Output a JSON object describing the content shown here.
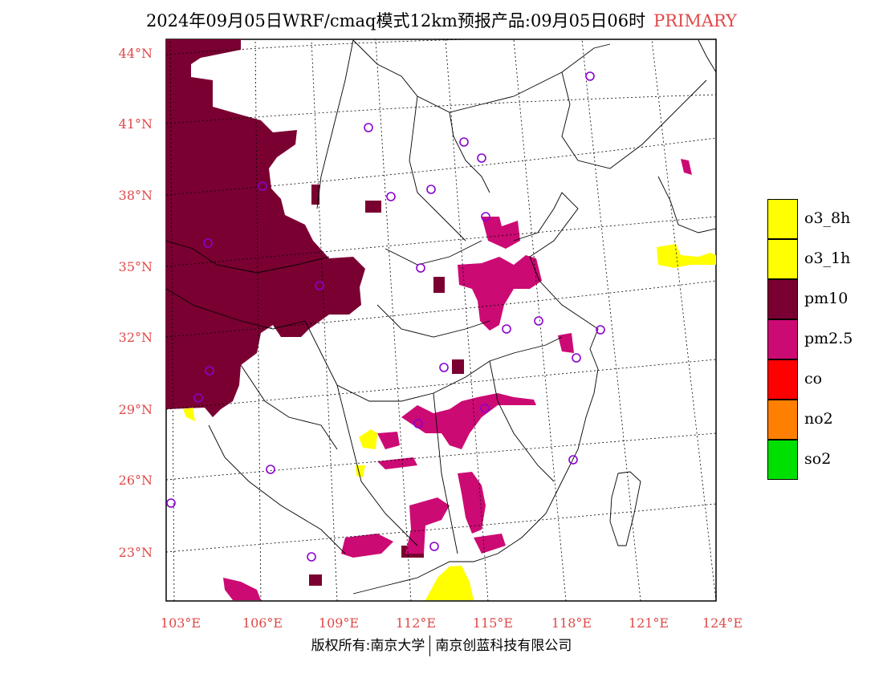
{
  "title": {
    "main": "2024年09月05日WRF/cmaq模式12km预报产品:09月05日06时",
    "status": "PRIMARY"
  },
  "map": {
    "lat_labels": [
      "44°N",
      "41°N",
      "38°N",
      "35°N",
      "32°N",
      "29°N",
      "26°N",
      "23°N"
    ],
    "lon_labels": [
      "103°E",
      "106°E",
      "109°E",
      "112°E",
      "115°E",
      "118°E",
      "121°E",
      "124°E"
    ]
  },
  "legend": {
    "items": [
      {
        "label": "o3_8h",
        "color": "#ffff00"
      },
      {
        "label": "o3_1h",
        "color": "#ffff00"
      },
      {
        "label": "pm10",
        "color": "#7a0032"
      },
      {
        "label": "pm2.5",
        "color": "#cc0a73"
      },
      {
        "label": "co",
        "color": "#ff0000"
      },
      {
        "label": "no2",
        "color": "#ff7f00"
      },
      {
        "label": "so2",
        "color": "#00e000"
      }
    ]
  },
  "footer": {
    "left": "版权所有:南京大学",
    "right": "南京创蓝科技有限公司"
  }
}
